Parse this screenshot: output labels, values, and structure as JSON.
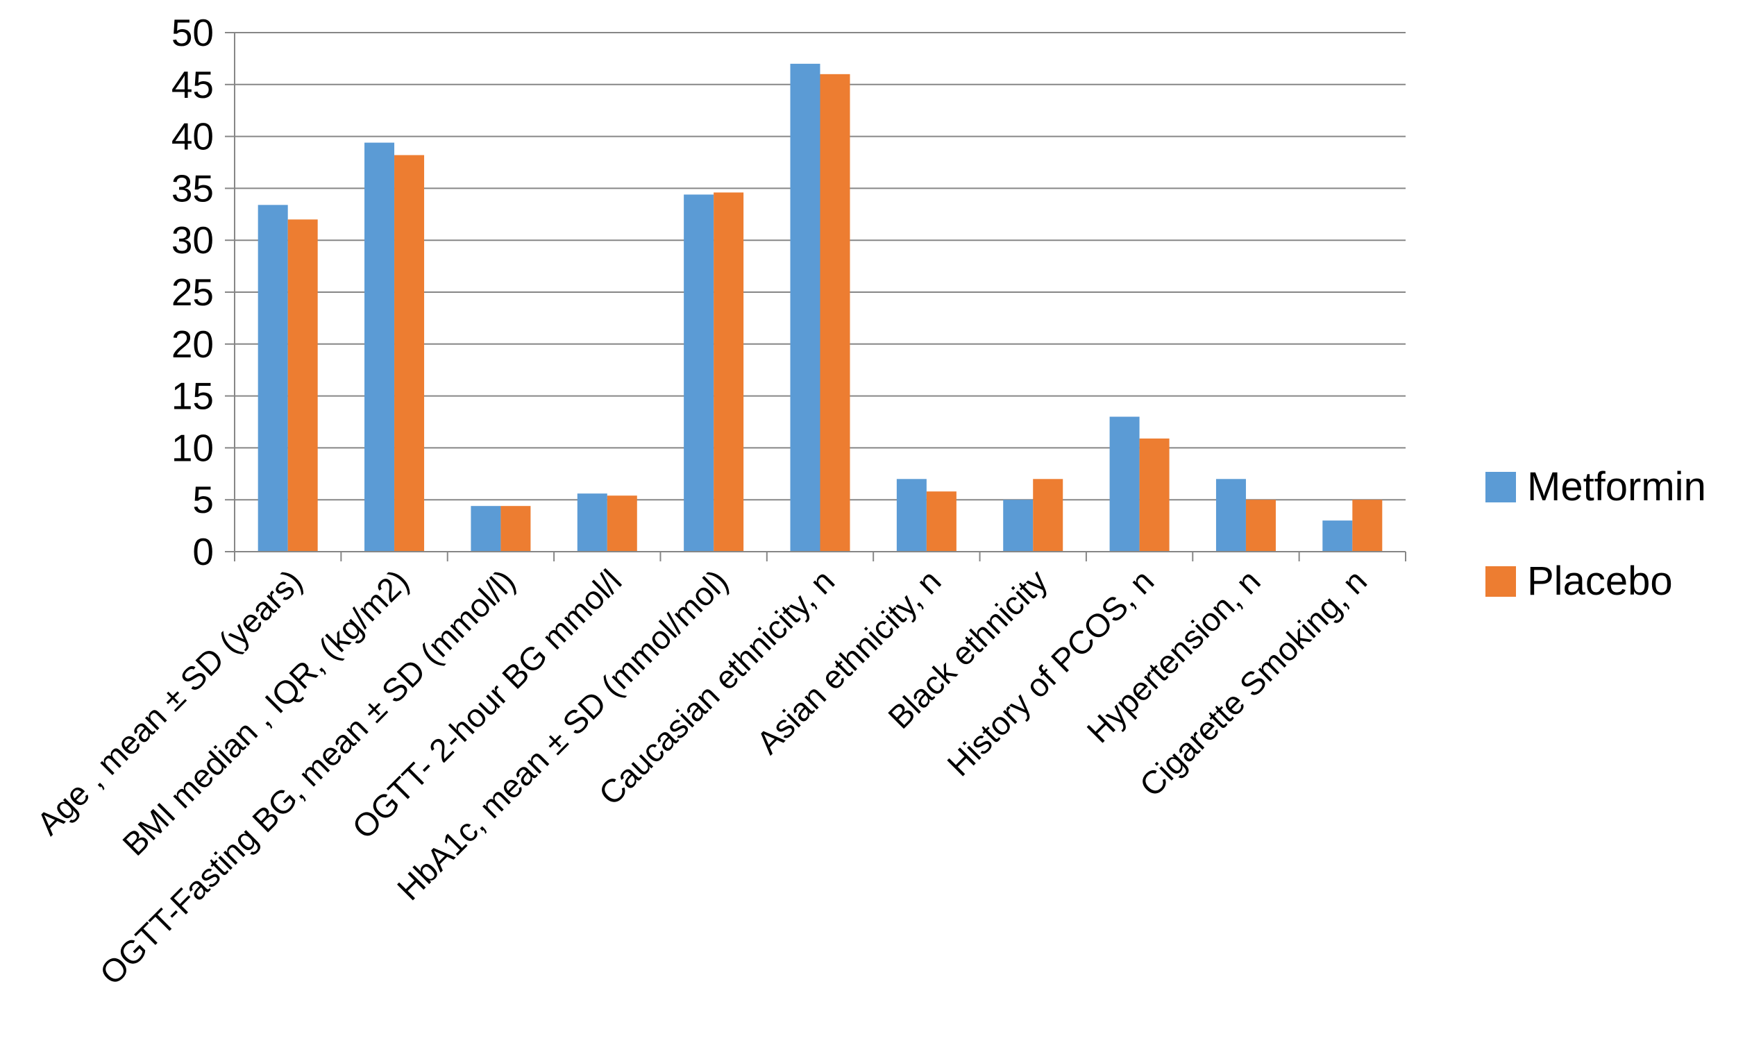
{
  "chart_data": {
    "type": "bar",
    "title": "",
    "xlabel": "",
    "ylabel": "",
    "ylim": [
      0,
      50
    ],
    "yticks": [
      0,
      5,
      10,
      15,
      20,
      25,
      30,
      35,
      40,
      45,
      50
    ],
    "grid": true,
    "legend_position": "right",
    "categories": [
      "Age , mean ± SD (years)",
      "BMI median , IQR, (kg/m2)",
      "OGTT-Fasting BG, mean ± SD (mmol/l)",
      "OGTT- 2-hour BG mmol/l",
      "HbA1c, mean ± SD (mmol/mol)",
      "Caucasian ethnicity, n",
      "Asian ethnicity, n",
      "Black ethnicity",
      "History of PCOS, n",
      "Hypertension, n",
      "Cigarette Smoking, n"
    ],
    "series": [
      {
        "name": "Metformin",
        "color": "#5B9BD5",
        "values": [
          33.4,
          39.4,
          4.4,
          5.6,
          34.4,
          47,
          7,
          5,
          13,
          7,
          3
        ]
      },
      {
        "name": "Placebo",
        "color": "#ED7D31",
        "values": [
          32,
          38.2,
          4.4,
          5.4,
          34.6,
          46,
          5.8,
          7,
          10.9,
          5,
          5
        ]
      }
    ]
  }
}
